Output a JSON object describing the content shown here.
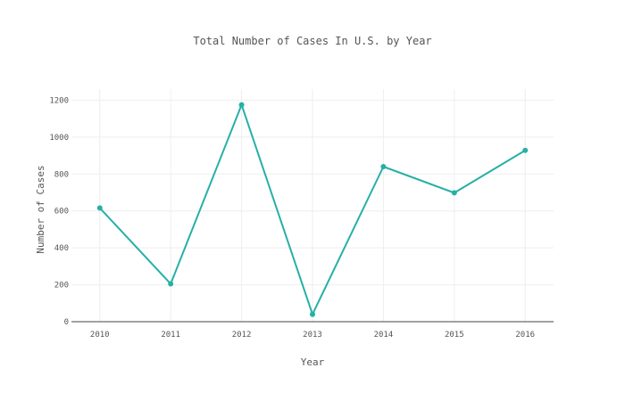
{
  "chart_data": {
    "type": "line",
    "title": "Total Number of Cases In U.S. by Year",
    "xlabel": "Year",
    "ylabel": "Number of Cases",
    "x": [
      2010,
      2011,
      2012,
      2013,
      2014,
      2015,
      2016
    ],
    "x_tick_labels": [
      "2010",
      "2011",
      "2012",
      "2013",
      "2014",
      "2015",
      "2016"
    ],
    "series": [
      {
        "values": [
          616,
          205,
          1175,
          40,
          840,
          698,
          928
        ],
        "color": "#26b0a6"
      }
    ],
    "y_ticks": [
      0,
      200,
      400,
      600,
      800,
      1000,
      1200
    ],
    "y_tick_labels": [
      "0",
      "200",
      "400",
      "600",
      "800",
      "1000",
      "1200"
    ],
    "ylim": [
      0,
      1260
    ],
    "xlim": [
      2009.6,
      2016.4
    ],
    "grid": true,
    "legend": "none"
  }
}
